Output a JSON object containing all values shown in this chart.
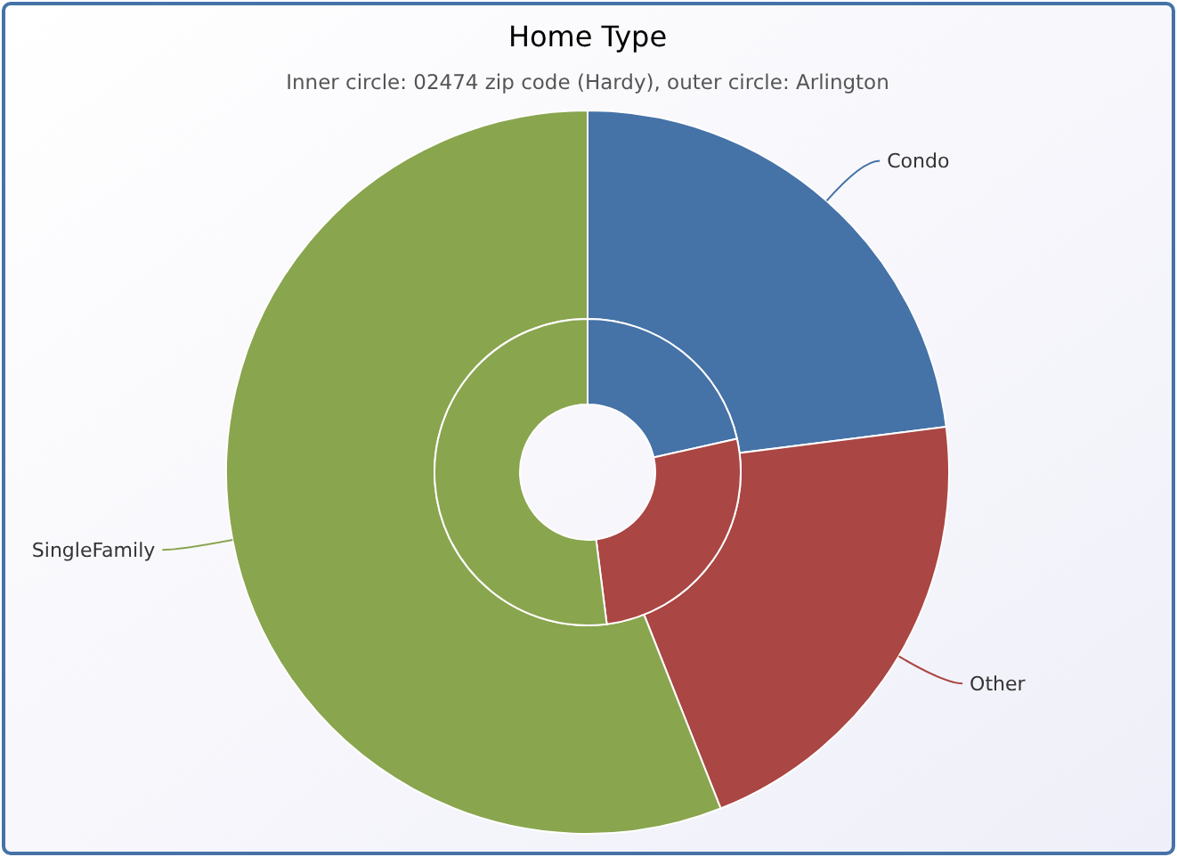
{
  "chart_data": [
    {
      "type": "donut",
      "title": "Home Type",
      "subtitle": "Inner circle: 02474 zip code (Hardy), outer circle: Arlington",
      "categories": [
        "Condo",
        "Other",
        "SingleFamily"
      ],
      "values": [
        23,
        21,
        56
      ],
      "colors": [
        "#4572a7",
        "#aa4643",
        "#89a54e"
      ]
    },
    {
      "type": "donut",
      "categories": [
        null,
        null,
        null
      ],
      "values": [
        21.5,
        26.5,
        52
      ],
      "colors": [
        "#4572a7",
        "#aa4643",
        "#89a54e"
      ]
    }
  ]
}
